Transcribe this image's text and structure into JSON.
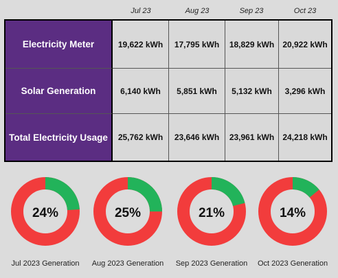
{
  "months": [
    "Jul 23",
    "Aug 23",
    "Sep 23",
    "Oct 23"
  ],
  "rows": [
    {
      "label": "Electricity Meter",
      "values": [
        "19,622 kWh",
        "17,795 kWh",
        "18,829 kWh",
        "20,922 kWh"
      ]
    },
    {
      "label": "Solar Generation",
      "values": [
        "6,140 kWh",
        "5,851 kWh",
        "5,132 kWh",
        "3,296 kWh"
      ]
    },
    {
      "label": "Total Electricity Usage",
      "values": [
        "25,762 kWh",
        "23,646 kWh",
        "23,961 kWh",
        "24,218 kWh"
      ]
    }
  ],
  "donuts": [
    {
      "percent_text": "24%",
      "fraction": 0.24,
      "label": "Jul 2023 Generation"
    },
    {
      "percent_text": "25%",
      "fraction": 0.25,
      "label": "Aug 2023 Generation"
    },
    {
      "percent_text": "21%",
      "fraction": 0.21,
      "label": "Sep 2023 Generation"
    },
    {
      "percent_text": "14%",
      "fraction": 0.14,
      "label": "Oct 2023 Generation"
    }
  ],
  "colors": {
    "row_header_bg": "#5b2d82",
    "generation": "#22b35a",
    "grid": "#f23c3c"
  }
}
